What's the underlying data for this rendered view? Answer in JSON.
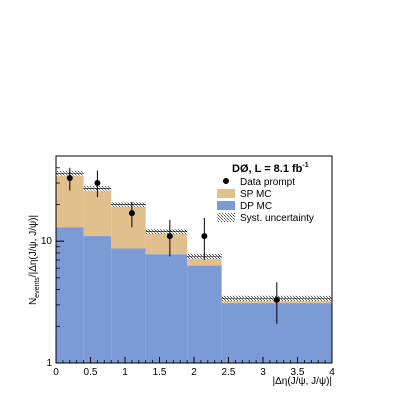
{
  "chart_data": {
    "type": "bar",
    "title": "DØ, L = 8.1 fb",
    "title_superscript": "-1",
    "xlabel": "|Δη(J/ψ, J/ψ)|",
    "ylabel": "N_events/|Δη(J/ψ, J/ψ)|",
    "ylabel_main": "N",
    "ylabel_sub": "events",
    "ylabel_rest": "/|Δη(J/ψ, J/ψ)|",
    "xlim": [
      0,
      4
    ],
    "ylim_log": [
      1,
      50
    ],
    "y_scale": "log",
    "x_tick_labels": [
      "0",
      "0.5",
      "1",
      "1.5",
      "2",
      "2.5",
      "3",
      "3.5",
      "4"
    ],
    "y_tick_labels": [
      "1",
      "10"
    ],
    "bin_edges": [
      0,
      0.4,
      0.8,
      1.3,
      1.9,
      2.4,
      4.0
    ],
    "series": [
      {
        "name": "DP MC",
        "color": "#7b9ad6",
        "values": [
          13.0,
          11.0,
          8.7,
          7.8,
          6.3,
          3.1
        ]
      },
      {
        "name": "SP MC",
        "color": "#e2c08d",
        "values": [
          36.0,
          27.0,
          20.0,
          12.0,
          7.5,
          3.4
        ]
      }
    ],
    "data_points": {
      "name": "Data prompt",
      "x": [
        0.2,
        0.6,
        1.1,
        1.65,
        2.15,
        3.2
      ],
      "y": [
        33.0,
        30.0,
        17.0,
        11.0,
        11.0,
        3.3
      ],
      "y_err_low": [
        7.0,
        7.0,
        4.0,
        3.5,
        4.0,
        1.2
      ],
      "y_err_high": [
        7.0,
        8.0,
        4.0,
        4.0,
        4.5,
        1.3
      ]
    },
    "systematic_band": {
      "name": "Syst. uncertainty",
      "rel_half_width": 0.05
    },
    "legend_position": "top-right"
  },
  "legend": {
    "title": "DØ, L = 8.1 fb",
    "title_sup": "-1",
    "items": [
      "Data prompt",
      "SP MC",
      "DP MC",
      "Syst. uncertainty"
    ]
  }
}
